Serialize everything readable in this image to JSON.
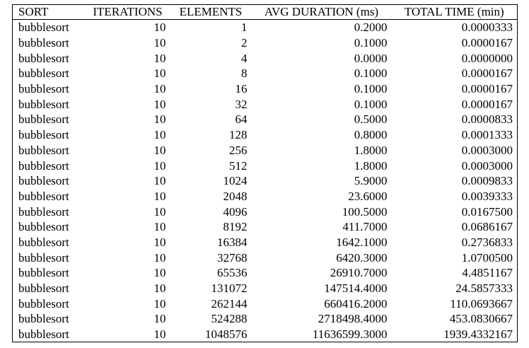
{
  "table": {
    "header": [
      "SORT",
      "ITERATIONS",
      "ELEMENTS",
      "AVG DURATION (ms)",
      "TOTAL TIME (min)"
    ],
    "rows": [
      [
        "bubblesort",
        "10",
        "1",
        "0.2000",
        "0.0000333"
      ],
      [
        "bubblesort",
        "10",
        "2",
        "0.1000",
        "0.0000167"
      ],
      [
        "bubblesort",
        "10",
        "4",
        "0.0000",
        "0.0000000"
      ],
      [
        "bubblesort",
        "10",
        "8",
        "0.1000",
        "0.0000167"
      ],
      [
        "bubblesort",
        "10",
        "16",
        "0.1000",
        "0.0000167"
      ],
      [
        "bubblesort",
        "10",
        "32",
        "0.1000",
        "0.0000167"
      ],
      [
        "bubblesort",
        "10",
        "64",
        "0.5000",
        "0.0000833"
      ],
      [
        "bubblesort",
        "10",
        "128",
        "0.8000",
        "0.0001333"
      ],
      [
        "bubblesort",
        "10",
        "256",
        "1.8000",
        "0.0003000"
      ],
      [
        "bubblesort",
        "10",
        "512",
        "1.8000",
        "0.0003000"
      ],
      [
        "bubblesort",
        "10",
        "1024",
        "5.9000",
        "0.0009833"
      ],
      [
        "bubblesort",
        "10",
        "2048",
        "23.6000",
        "0.0039333"
      ],
      [
        "bubblesort",
        "10",
        "4096",
        "100.5000",
        "0.0167500"
      ],
      [
        "bubblesort",
        "10",
        "8192",
        "411.7000",
        "0.0686167"
      ],
      [
        "bubblesort",
        "10",
        "16384",
        "1642.1000",
        "0.2736833"
      ],
      [
        "bubblesort",
        "10",
        "32768",
        "6420.3000",
        "1.0700500"
      ],
      [
        "bubblesort",
        "10",
        "65536",
        "26910.7000",
        "4.4851167"
      ],
      [
        "bubblesort",
        "10",
        "131072",
        "147514.4000",
        "24.5857333"
      ],
      [
        "bubblesort",
        "10",
        "262144",
        "660416.2000",
        "110.0693667"
      ],
      [
        "bubblesort",
        "10",
        "524288",
        "2718498.4000",
        "453.0830667"
      ],
      [
        "bubblesort",
        "10",
        "1048576",
        "11636599.3000",
        "1939.4332167"
      ]
    ]
  }
}
